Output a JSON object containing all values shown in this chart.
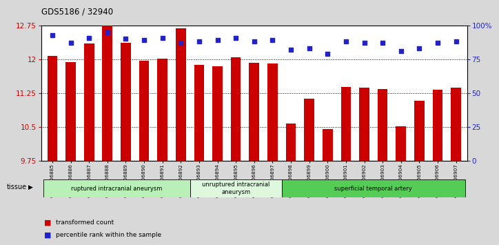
{
  "title": "GDS5186 / 32940",
  "samples": [
    "GSM1306885",
    "GSM1306886",
    "GSM1306887",
    "GSM1306888",
    "GSM1306889",
    "GSM1306890",
    "GSM1306891",
    "GSM1306892",
    "GSM1306893",
    "GSM1306894",
    "GSM1306895",
    "GSM1306896",
    "GSM1306897",
    "GSM1306898",
    "GSM1306899",
    "GSM1306900",
    "GSM1306901",
    "GSM1306902",
    "GSM1306903",
    "GSM1306904",
    "GSM1306905",
    "GSM1306906",
    "GSM1306907"
  ],
  "bar_values": [
    12.07,
    11.93,
    12.35,
    12.76,
    12.37,
    11.97,
    12.01,
    12.68,
    11.87,
    11.85,
    12.05,
    11.92,
    11.9,
    10.57,
    11.12,
    10.45,
    11.38,
    11.37,
    11.34,
    10.51,
    11.08,
    11.32,
    11.37
  ],
  "percentile_values": [
    93,
    87,
    91,
    95,
    90,
    89,
    91,
    87,
    88,
    89,
    91,
    88,
    89,
    82,
    83,
    79,
    88,
    87,
    87,
    81,
    83,
    87,
    88
  ],
  "groups": [
    {
      "label": "ruptured intracranial aneurysm",
      "start": 0,
      "end": 8,
      "color": "#b8f0b8"
    },
    {
      "label": "unruptured intracranial\naneurysm",
      "start": 8,
      "end": 13,
      "color": "#ddf8dd"
    },
    {
      "label": "superficial temporal artery",
      "start": 13,
      "end": 23,
      "color": "#55cc55"
    }
  ],
  "y_min": 9.75,
  "y_max": 12.75,
  "y_ticks": [
    9.75,
    10.5,
    11.25,
    12.0,
    12.75
  ],
  "y_tick_labels": [
    "9.75",
    "10.5",
    "11.25",
    "12",
    "12.75"
  ],
  "right_y_ticks": [
    0,
    25,
    50,
    75,
    100
  ],
  "right_y_labels": [
    "0",
    "25",
    "50",
    "75",
    "100%"
  ],
  "bar_color": "#cc0000",
  "dot_color": "#2222cc",
  "background_color": "#d8d8d8",
  "plot_bg": "#ffffff",
  "tissue_label": "tissue",
  "legend_items": [
    {
      "label": "transformed count",
      "color": "#cc0000"
    },
    {
      "label": "percentile rank within the sample",
      "color": "#2222cc"
    }
  ]
}
